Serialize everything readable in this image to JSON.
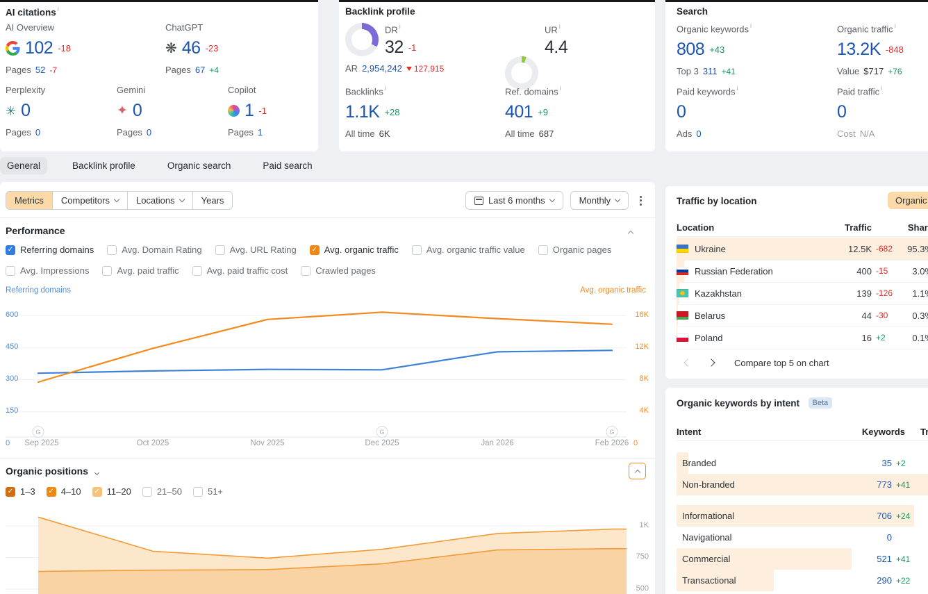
{
  "colors": {
    "accent_blue": "#1b54b3",
    "chart_blue": "#3e82d5",
    "orange": "#f28a1e",
    "red": "#de2c2c",
    "green": "#149a5c",
    "tan_button": "#fbd9a8",
    "row_highlight": "#fdeede",
    "dr_purple": "#7c6bd6",
    "ur_green": "#8fca3f"
  },
  "labels": {
    "pages": "Pages",
    "all_time": "All time",
    "ar": "AR"
  },
  "icons": {
    "info": "i",
    "google_update_marker": "G"
  },
  "ai_citations": {
    "title": "AI citations",
    "items": [
      {
        "name": "AI Overview",
        "icon": "google-g",
        "value": "102",
        "delta": "-18",
        "pages": "52",
        "pages_delta": "-7"
      },
      {
        "name": "ChatGPT",
        "icon": "chatgpt",
        "value": "46",
        "delta": "-23",
        "pages": "67",
        "pages_delta": "+4"
      },
      {
        "name": "Perplexity",
        "icon": "perplexity",
        "value": "0",
        "pages": "0"
      },
      {
        "name": "Gemini",
        "icon": "gemini",
        "value": "0",
        "pages": "0"
      },
      {
        "name": "Copilot",
        "icon": "copilot",
        "value": "1",
        "delta": "-1",
        "pages": "1"
      }
    ]
  },
  "backlink_profile": {
    "title": "Backlink profile",
    "dr": {
      "label": "DR",
      "value": "32",
      "delta": "-1",
      "percent": 32
    },
    "ar": {
      "label": "AR",
      "value": "2,954,242",
      "delta": "127,915"
    },
    "ur": {
      "label": "UR",
      "value": "4.4",
      "percent": 4.5
    },
    "backlinks": {
      "label": "Backlinks",
      "value": "1.1K",
      "delta": "+28",
      "all_time": "6K"
    },
    "ref_domains": {
      "label": "Ref. domains",
      "value": "401",
      "delta": "+9",
      "all_time": "687"
    }
  },
  "search": {
    "title": "Search",
    "organic_keywords": {
      "label": "Organic keywords",
      "value": "808",
      "delta": "+43",
      "sub_label": "Top 3",
      "sub_value": "311",
      "sub_delta": "+41"
    },
    "organic_traffic": {
      "label": "Organic traffic",
      "value": "13.2K",
      "delta": "-848",
      "sub_label": "Value",
      "sub_value": "$717",
      "sub_delta": "+76"
    },
    "paid_keywords": {
      "label": "Paid keywords",
      "value": "0",
      "sub_label": "Ads",
      "sub_value": "0"
    },
    "paid_traffic": {
      "label": "Paid traffic",
      "value": "0",
      "sub_label": "Cost",
      "sub_value": "N/A"
    }
  },
  "tabs": [
    {
      "label": "General",
      "active": true
    },
    {
      "label": "Backlink profile",
      "active": false
    },
    {
      "label": "Organic search",
      "active": false
    },
    {
      "label": "Paid search",
      "active": false
    }
  ],
  "toolbar": {
    "segments": [
      {
        "label": "Metrics",
        "active": true
      },
      {
        "label": "Competitors",
        "dropdown": true
      },
      {
        "label": "Locations",
        "dropdown": true
      },
      {
        "label": "Years"
      }
    ],
    "date_range": "Last 6 months",
    "granularity": "Monthly"
  },
  "performance": {
    "title": "Performance",
    "checkboxes_row1": [
      {
        "label": "Referring domains",
        "checked": true,
        "color": "blue"
      },
      {
        "label": "Avg. Domain Rating",
        "checked": false
      },
      {
        "label": "Avg. URL Rating",
        "checked": false
      },
      {
        "label": "Avg. organic traffic",
        "checked": true,
        "color": "orange"
      },
      {
        "label": "Avg. organic traffic value",
        "checked": false
      },
      {
        "label": "Organic pages",
        "checked": false
      }
    ],
    "checkboxes_row2": [
      {
        "label": "Avg. Impressions",
        "checked": false
      },
      {
        "label": "Avg. paid traffic",
        "checked": false
      },
      {
        "label": "Avg. paid traffic cost",
        "checked": false
      },
      {
        "label": "Crawled pages",
        "checked": false
      }
    ]
  },
  "organic_positions": {
    "title": "Organic positions",
    "checkboxes": [
      {
        "label": "1–3",
        "checked": true,
        "color": "orange-dark"
      },
      {
        "label": "4–10",
        "checked": true,
        "color": "orange"
      },
      {
        "label": "11–20",
        "checked": true,
        "color": "orange-light"
      },
      {
        "label": "21–50",
        "checked": false
      },
      {
        "label": "51+",
        "checked": false
      }
    ]
  },
  "traffic_by_location": {
    "title": "Traffic by location",
    "filter_button": "Organic",
    "columns": [
      "Location",
      "Traffic",
      "Share"
    ],
    "rows": [
      {
        "location": "Ukraine",
        "flag": "ukraine",
        "traffic": "12.5K",
        "delta": "-682",
        "share": "95.3%"
      },
      {
        "location": "Russian Federation",
        "flag": "russia",
        "traffic": "400",
        "delta": "-15",
        "share": "3.0%"
      },
      {
        "location": "Kazakhstan",
        "flag": "kazakhstan",
        "traffic": "139",
        "delta": "-126",
        "share": "1.1%"
      },
      {
        "location": "Belarus",
        "flag": "belarus",
        "traffic": "44",
        "delta": "-30",
        "share": "0.3%"
      },
      {
        "location": "Poland",
        "flag": "poland",
        "traffic": "16",
        "delta": "+2",
        "share": "0.1%"
      }
    ],
    "compare_link": "Compare top 5 on chart"
  },
  "keywords_by_intent": {
    "title": "Organic keywords by intent",
    "badge": "Beta",
    "columns": [
      "Intent",
      "Keywords",
      "Traffic"
    ],
    "rows": [
      {
        "intent": "Branded",
        "keywords": "35",
        "delta": "+2"
      },
      {
        "intent": "Non-branded",
        "keywords": "773",
        "delta": "+41"
      },
      {
        "intent": "Informational",
        "keywords": "706",
        "delta": "+24"
      },
      {
        "intent": "Navigational",
        "keywords": "0"
      },
      {
        "intent": "Commercial",
        "keywords": "521",
        "delta": "+41"
      },
      {
        "intent": "Transactional",
        "keywords": "290",
        "delta": "+22"
      }
    ]
  },
  "chart_data": [
    {
      "type": "line",
      "title": "Performance",
      "x": [
        "Sep 2025",
        "Oct 2025",
        "Nov 2025",
        "Dec 2025",
        "Jan 2026",
        "Feb 2026"
      ],
      "series": [
        {
          "name": "Referring domains",
          "axis": "left",
          "color": "#3e82d5",
          "values": [
            330,
            341,
            348,
            346,
            430,
            437
          ]
        },
        {
          "name": "Avg. organic traffic",
          "axis": "right",
          "color": "#f28a1e",
          "values": [
            7700,
            11900,
            15500,
            16400,
            15600,
            14900
          ]
        }
      ],
      "left_axis": {
        "ticks": [
          "0",
          "150",
          "300",
          "450",
          "600"
        ],
        "max": 600
      },
      "right_axis": {
        "ticks": [
          "0",
          "4K",
          "8K",
          "12K",
          "16K"
        ],
        "max": 16000
      },
      "google_update_markers": [
        "Sep 2025",
        "Dec 2025",
        "Feb 2026"
      ],
      "grid": true,
      "legend_position": "top"
    },
    {
      "type": "area",
      "title": "Organic positions",
      "x": [
        "Sep 2025",
        "Oct 2025",
        "Nov 2025",
        "Dec 2025",
        "Jan 2026",
        "Feb 2026"
      ],
      "series": [
        {
          "name": "Positions 11–20 stacked top boundary",
          "color": "#f39b38",
          "fill": "#fce4c4",
          "values": [
            1070,
            800,
            745,
            815,
            940,
            975
          ]
        },
        {
          "name": "Positions 4–10 stacked boundary",
          "color": "#f39b38",
          "fill": "#f9d3a4",
          "values": [
            640,
            650,
            655,
            700,
            810,
            820
          ]
        }
      ],
      "right_axis": {
        "ticks": [
          "500",
          "750",
          "1K"
        ],
        "max": 1000
      },
      "ylim_visible": [
        500,
        1050
      ],
      "grid": true
    }
  ]
}
